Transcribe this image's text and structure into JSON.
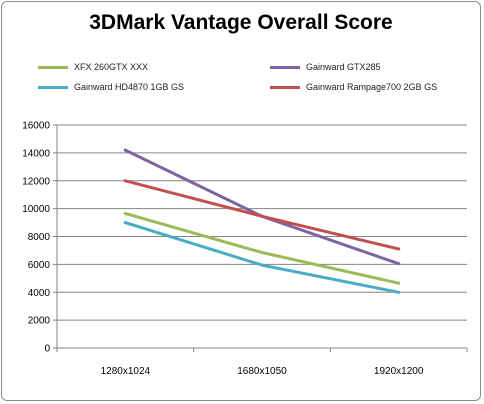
{
  "chart_data": {
    "type": "line",
    "title": "3DMark Vantage Overall Score",
    "xlabel": "",
    "ylabel": "",
    "categories": [
      "1280x1024",
      "1680x1050",
      "1920x1200"
    ],
    "ylim": [
      0,
      16000
    ],
    "yticks": [
      "0",
      "2000",
      "4000",
      "6000",
      "8000",
      "10000",
      "12000",
      "14000",
      "16000"
    ],
    "grid": true,
    "legend_position": "top",
    "series": [
      {
        "name": "XFX 260GTX XXX",
        "color": "#9bbb59",
        "values": [
          9650,
          6850,
          4650
        ]
      },
      {
        "name": "Gainward GTX285",
        "color": "#8064a2",
        "values": [
          14200,
          9450,
          6050
        ]
      },
      {
        "name": "Gainward HD4870 1GB GS",
        "color": "#4bacc6",
        "values": [
          9000,
          5950,
          4000
        ]
      },
      {
        "name": "Gainward Rampage700 2GB GS",
        "color": "#c0504d",
        "values": [
          12000,
          9450,
          7100
        ]
      }
    ]
  }
}
